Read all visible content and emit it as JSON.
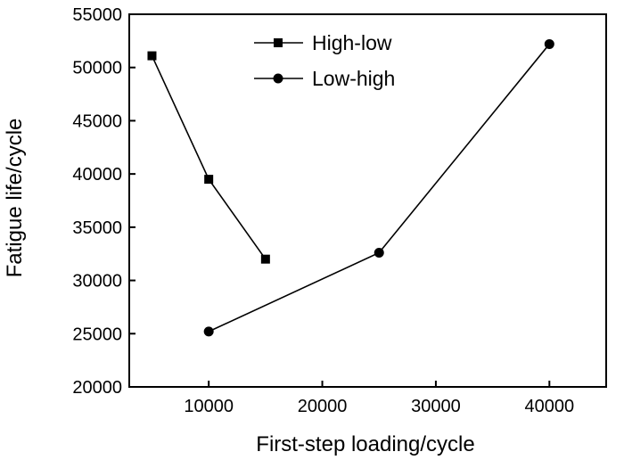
{
  "chart_data": {
    "type": "line",
    "xlabel": "First-step loading/cycle",
    "ylabel": "Fatigue life/cycle",
    "xlim": [
      3000,
      45000
    ],
    "ylim": [
      20000,
      55000
    ],
    "x_ticks": [
      10000,
      20000,
      30000,
      40000
    ],
    "y_ticks": [
      20000,
      25000,
      30000,
      35000,
      40000,
      45000,
      50000,
      55000
    ],
    "x_tick_labels": [
      "10000",
      "20000",
      "30000",
      "40000"
    ],
    "y_tick_labels": [
      "20000",
      "25000",
      "30000",
      "35000",
      "40000",
      "45000",
      "50000",
      "55000"
    ],
    "grid": false,
    "legend_position": "top-center",
    "series": [
      {
        "name": "High-low",
        "marker": "square",
        "x": [
          5000,
          10000,
          15000
        ],
        "y": [
          51100,
          39500,
          32000
        ]
      },
      {
        "name": "Low-high",
        "marker": "circle",
        "x": [
          10000,
          25000,
          40000
        ],
        "y": [
          25200,
          32600,
          52200
        ]
      }
    ]
  }
}
